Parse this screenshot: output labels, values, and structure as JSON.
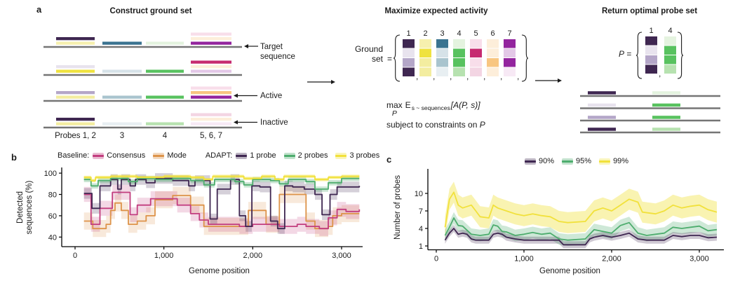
{
  "panels": {
    "a": {
      "label": "a",
      "left": {
        "title": "Construct ground set",
        "probe_group_labels": [
          "Probes 1, 2",
          "3",
          "4",
          "5, 6, 7"
        ],
        "row_annotations": [
          {
            "row": 0,
            "lines": [
              "Target",
              "sequence"
            ]
          },
          {
            "row": 2,
            "lines": [
              "Active"
            ]
          },
          {
            "row": 3,
            "lines": [
              "Inactive"
            ]
          }
        ]
      },
      "middle": {
        "title": "Maximize expected activity",
        "ground_set": {
          "line1": "Ground",
          "line2": "set",
          "equals": "="
        },
        "column_numbers": [
          "1",
          "2",
          "3",
          "4",
          "5",
          "6",
          "7"
        ],
        "comma": ",",
        "columns": [
          [
            "#3f2751",
            "#e8e3ee",
            "#b4a6c8",
            "#3f2751"
          ],
          [
            "#f6f0ae",
            "#efe23f",
            "#f3eda0",
            "#f3eda0"
          ],
          [
            "#3a7390",
            "#d6e2e8",
            "#a9c4ce",
            "#e8eff2"
          ],
          [
            "#e4f3df",
            "#58c25f",
            "#58c25f",
            "#b7e2b0"
          ],
          [
            "#f8deea",
            "#c62a70",
            "#f8deea",
            "#f3d5e3"
          ],
          [
            "#fdeeda",
            "#fdeeda",
            "#f8c681",
            "#fdeeda"
          ],
          [
            "#93249e",
            "#e3c8e7",
            "#93249e",
            "#f7e9f5"
          ]
        ],
        "objective": {
          "max": "max",
          "max_sub": "P",
          "expectation": "E",
          "expectation_sub": "s ~ sequences",
          "activity": "[A(P, s)]",
          "constraint": "subject to constraints on",
          "constraint_var": "P"
        }
      },
      "right": {
        "title": "Return optimal probe set",
        "p_set": {
          "var": "P",
          "equals": "="
        },
        "column_numbers": [
          "1",
          "4"
        ],
        "column_indices": [
          0,
          3
        ],
        "comma": ","
      }
    },
    "b": {
      "label": "b"
    },
    "c": {
      "label": "c"
    }
  },
  "chart_data": [
    {
      "type": "line",
      "panel": "b",
      "interp": "step",
      "xlabel": "Genome position",
      "ylabel": "Detected sequences (%)",
      "ylabel_lines": [
        "Detected",
        "sequences (%)"
      ],
      "xlim": [
        0,
        3200
      ],
      "ylim": [
        31,
        104
      ],
      "xticks": [
        0,
        1000,
        2000,
        3000
      ],
      "xtick_labels": [
        "0",
        "1,000",
        "2,000",
        "3,000"
      ],
      "yticks": [
        40,
        60,
        80,
        100
      ],
      "ytick_labels": [
        "40",
        "60",
        "80",
        "100"
      ],
      "grid": false,
      "legend_position": "top",
      "legend_groups": [
        {
          "prefix": "Baseline:",
          "entries": [
            {
              "name": "Consensus",
              "color": "#c23d7e"
            },
            {
              "name": "Mode",
              "color": "#dd9349"
            }
          ]
        },
        {
          "prefix": "ADAPT:",
          "entries": [
            {
              "name": "1 probe",
              "color": "#3f2751"
            },
            {
              "name": "2 probes",
              "color": "#4ead6e"
            },
            {
              "name": "3 probes",
              "color": "#f1e13b"
            }
          ]
        }
      ],
      "series": [
        {
          "name": "Mode",
          "color": "#dd9349",
          "band": 8,
          "band_alpha": 0.2,
          "x": [
            100,
            200,
            350,
            400,
            450,
            520,
            600,
            700,
            800,
            900,
            1100,
            1300,
            1450,
            1950,
            2150,
            2300,
            2500,
            2600,
            2700,
            2850,
            2900,
            3000,
            3200
          ],
          "y": [
            55,
            48,
            52,
            65,
            72,
            65,
            52,
            55,
            60,
            75,
            79,
            70,
            50,
            65,
            52,
            80,
            80,
            55,
            48,
            50,
            60,
            62,
            62
          ]
        },
        {
          "name": "Consensus",
          "color": "#c23d7e",
          "band": 7,
          "band_alpha": 0.2,
          "x": [
            100,
            180,
            280,
            330,
            420,
            560,
            620,
            700,
            850,
            1150,
            1300,
            1400,
            1500,
            1700,
            1850,
            2000,
            2300,
            2500,
            2600,
            2750,
            2850,
            2950,
            3050,
            3200
          ],
          "y": [
            80,
            52,
            67,
            67,
            82,
            82,
            61,
            70,
            76,
            70,
            62,
            56,
            52,
            52,
            50,
            52,
            50,
            52,
            50,
            48,
            58,
            66,
            64,
            66
          ]
        },
        {
          "name": "1 probe",
          "color": "#3f2751",
          "band": 5,
          "band_alpha": 0.22,
          "x": [
            100,
            190,
            280,
            400,
            480,
            520,
            620,
            680,
            800,
            900,
            1100,
            1280,
            1350,
            1450,
            1520,
            1600,
            1750,
            1850,
            1920,
            1990,
            2080,
            2200,
            2280,
            2360,
            2450,
            2580,
            2700,
            2780,
            2870,
            2950,
            3200
          ],
          "y": [
            81,
            67,
            88,
            94,
            85,
            94,
            88,
            94,
            91,
            95,
            93,
            88,
            93,
            93,
            57,
            85,
            94,
            60,
            50,
            88,
            87,
            55,
            48,
            88,
            87,
            85,
            80,
            61,
            80,
            87,
            88
          ]
        },
        {
          "name": "2 probes",
          "color": "#4ead6e",
          "band": 2.5,
          "band_alpha": 0.3,
          "x": [
            100,
            180,
            260,
            400,
            600,
            700,
            900,
            1100,
            1300,
            1450,
            1570,
            1800,
            1900,
            2000,
            2200,
            2300,
            2400,
            2600,
            2700,
            2850,
            3000,
            3200
          ],
          "y": [
            94,
            88,
            93,
            95,
            92,
            95,
            94,
            95,
            93,
            89,
            94,
            92,
            89,
            94,
            93,
            90,
            94,
            92,
            85,
            91,
            95,
            95
          ]
        },
        {
          "name": "3 probes",
          "color": "#f1e13b",
          "band": 1.5,
          "band_alpha": 0.5,
          "x": [
            100,
            180,
            230,
            400,
            700,
            1000,
            1300,
            1450,
            1550,
            1900,
            2100,
            2250,
            2350,
            2700,
            2850,
            3000,
            3200
          ],
          "y": [
            96,
            93,
            96,
            97,
            96,
            97,
            96,
            94,
            97,
            95,
            97,
            94,
            97,
            94,
            96,
            97,
            97
          ]
        }
      ]
    },
    {
      "type": "line",
      "panel": "c",
      "interp": "linear",
      "xlabel": "Genome position",
      "ylabel": "Number of probes",
      "ylabel_lines": [
        "Number of probes"
      ],
      "xlim": [
        0,
        3200
      ],
      "ylim": [
        0.3,
        14
      ],
      "xticks": [
        0,
        1000,
        2000,
        3000
      ],
      "xtick_labels": [
        "0",
        "1,000",
        "2,000",
        "3,000"
      ],
      "yticks": [
        1,
        4,
        7,
        10
      ],
      "ytick_labels": [
        "1",
        "4",
        "7",
        "10"
      ],
      "grid": false,
      "legend_position": "top",
      "legend_groups": [
        {
          "prefix": "",
          "entries": [
            {
              "name": "90%",
              "color": "#3f2751"
            },
            {
              "name": "95%",
              "color": "#4ead6e"
            },
            {
              "name": "99%",
              "color": "#f1e13b"
            }
          ]
        }
      ],
      "series": [
        {
          "name": "99%",
          "color": "#f1e13b",
          "band": 1.8,
          "band_alpha": 0.4,
          "x": [
            100,
            150,
            200,
            250,
            300,
            400,
            450,
            500,
            600,
            650,
            700,
            800,
            900,
            1000,
            1100,
            1200,
            1300,
            1400,
            1500,
            1700,
            1800,
            1900,
            2000,
            2100,
            2200,
            2300,
            2350,
            2500,
            2600,
            2700,
            2800,
            2900,
            3000,
            3100,
            3200
          ],
          "y": [
            4.2,
            9.0,
            10.2,
            8.0,
            7.5,
            8.0,
            7.0,
            6.0,
            5.8,
            8.0,
            7.5,
            7.0,
            6.5,
            6.2,
            6.5,
            6.2,
            6.0,
            5.2,
            5.0,
            5.2,
            7.0,
            7.5,
            7.0,
            8.0,
            9.0,
            8.5,
            6.8,
            6.5,
            7.0,
            8.0,
            7.5,
            7.8,
            8.0,
            7.2,
            6.8
          ]
        },
        {
          "name": "95%",
          "color": "#4ead6e",
          "band": 1.0,
          "band_alpha": 0.28,
          "x": [
            100,
            150,
            200,
            250,
            300,
            400,
            500,
            600,
            650,
            700,
            750,
            800,
            900,
            1000,
            1100,
            1200,
            1300,
            1400,
            1500,
            1700,
            1800,
            1900,
            2000,
            2100,
            2200,
            2300,
            2400,
            2500,
            2600,
            2700,
            2800,
            2900,
            3000,
            3100,
            3200
          ],
          "y": [
            2.8,
            4.2,
            5.8,
            4.5,
            4.4,
            3.0,
            2.8,
            3.0,
            4.6,
            4.4,
            3.5,
            3.4,
            2.8,
            3.0,
            3.3,
            3.0,
            3.2,
            2.2,
            2.0,
            2.2,
            3.8,
            3.5,
            3.2,
            4.5,
            5.0,
            3.2,
            2.8,
            3.0,
            3.2,
            4.2,
            4.0,
            4.2,
            4.4,
            3.6,
            3.8
          ]
        },
        {
          "name": "90%",
          "color": "#3f2751",
          "band": 0.6,
          "band_alpha": 0.25,
          "x": [
            100,
            150,
            200,
            250,
            300,
            350,
            400,
            450,
            600,
            650,
            700,
            750,
            800,
            900,
            1000,
            1400,
            1450,
            1700,
            1750,
            1800,
            1900,
            2000,
            2100,
            2200,
            2300,
            2400,
            2600,
            2700,
            2800,
            2900,
            3000,
            3100,
            3200
          ],
          "y": [
            2.0,
            3.2,
            4.0,
            3.0,
            3.2,
            3.0,
            2.2,
            2.0,
            2.0,
            3.0,
            3.2,
            3.0,
            2.5,
            2.2,
            2.0,
            2.0,
            1.2,
            1.2,
            2.2,
            2.5,
            2.8,
            2.5,
            2.8,
            3.2,
            2.2,
            2.0,
            2.0,
            2.8,
            2.6,
            2.8,
            2.8,
            2.4,
            2.5
          ]
        }
      ]
    }
  ]
}
